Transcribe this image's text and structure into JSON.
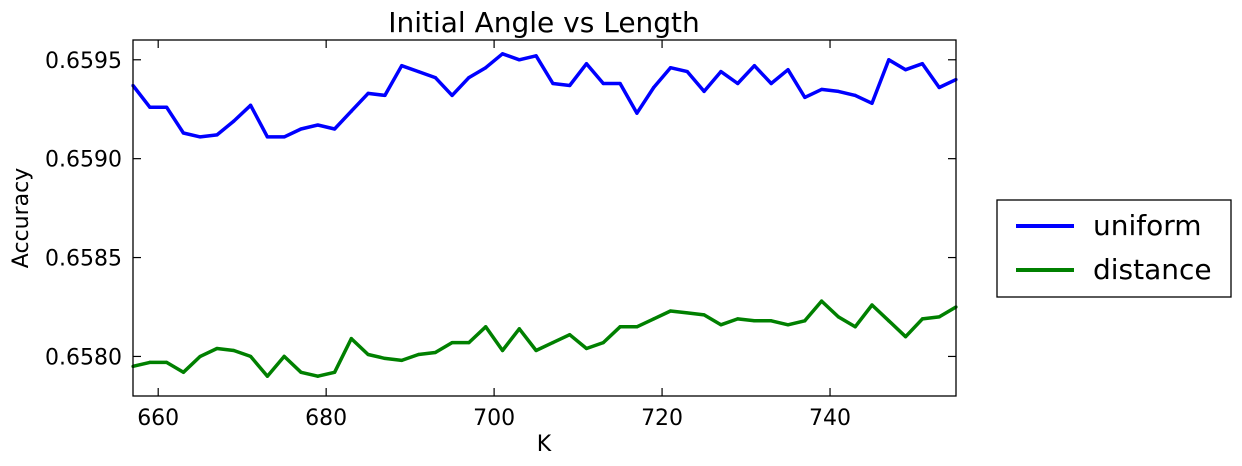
{
  "chart_data": {
    "type": "line",
    "title": "Initial Angle vs Length",
    "xlabel": "K",
    "ylabel": "Accuracy",
    "xlim": [
      657,
      755
    ],
    "ylim": [
      0.6578,
      0.6596
    ],
    "xticks": [
      660,
      680,
      700,
      720,
      740
    ],
    "yticks": [
      0.658,
      0.6585,
      0.659,
      0.6595
    ],
    "xtick_labels": [
      "660",
      "680",
      "700",
      "720",
      "740"
    ],
    "ytick_labels": [
      "0.6580",
      "0.6585",
      "0.6590",
      "0.6595"
    ],
    "grid": false,
    "legend_position": "outside-right",
    "x": [
      657,
      659,
      661,
      663,
      665,
      667,
      669,
      671,
      673,
      675,
      677,
      679,
      681,
      683,
      685,
      687,
      689,
      691,
      693,
      695,
      697,
      699,
      701,
      703,
      705,
      707,
      709,
      711,
      713,
      715,
      717,
      719,
      721,
      723,
      725,
      727,
      729,
      731,
      733,
      735,
      737,
      739,
      741,
      743,
      745,
      747,
      749,
      751,
      753,
      755
    ],
    "series": [
      {
        "name": "uniform",
        "color": "#0000ff",
        "values": [
          0.65937,
          0.65926,
          0.65926,
          0.65913,
          0.65911,
          0.65912,
          0.65919,
          0.65927,
          0.65911,
          0.65911,
          0.65915,
          0.65917,
          0.65915,
          0.65924,
          0.65933,
          0.65932,
          0.65947,
          0.65944,
          0.65941,
          0.65932,
          0.65941,
          0.65946,
          0.65953,
          0.6595,
          0.65952,
          0.65938,
          0.65937,
          0.65948,
          0.65938,
          0.65938,
          0.65923,
          0.65936,
          0.65946,
          0.65944,
          0.65934,
          0.65944,
          0.65938,
          0.65947,
          0.65938,
          0.65945,
          0.65931,
          0.65935,
          0.65934,
          0.65932,
          0.65928,
          0.6595,
          0.65945,
          0.65948,
          0.65936,
          0.6594
        ]
      },
      {
        "name": "distance",
        "color": "#008000",
        "values": [
          0.65795,
          0.65797,
          0.65797,
          0.65792,
          0.658,
          0.65804,
          0.65803,
          0.658,
          0.6579,
          0.658,
          0.65792,
          0.6579,
          0.65792,
          0.65809,
          0.65801,
          0.65799,
          0.65798,
          0.65801,
          0.65802,
          0.65807,
          0.65807,
          0.65815,
          0.65803,
          0.65814,
          0.65803,
          0.65807,
          0.65811,
          0.65804,
          0.65807,
          0.65815,
          0.65815,
          0.65819,
          0.65823,
          0.65822,
          0.65821,
          0.65816,
          0.65819,
          0.65818,
          0.65818,
          0.65816,
          0.65818,
          0.65828,
          0.6582,
          0.65815,
          0.65826,
          0.65818,
          0.6581,
          0.65819,
          0.6582,
          0.65825
        ]
      }
    ]
  }
}
